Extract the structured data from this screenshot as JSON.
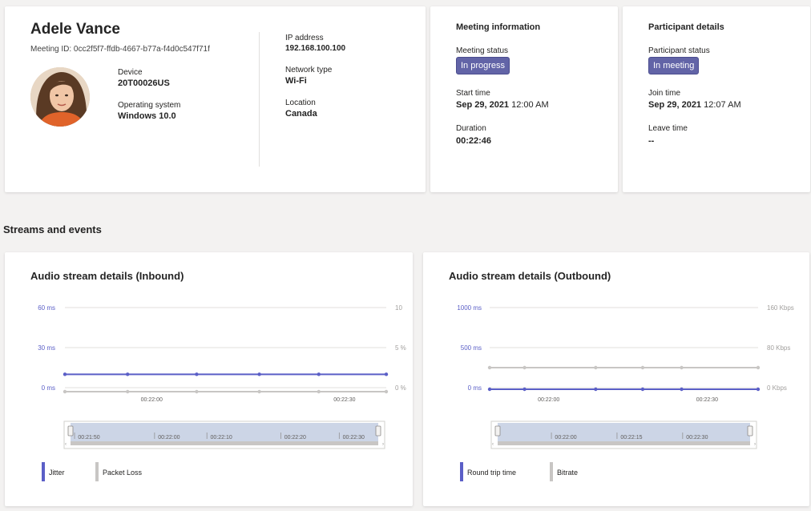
{
  "participant": {
    "name": "Adele Vance",
    "meeting_id_label": "Meeting ID:",
    "meeting_id": "0cc2f5f7-ffdb-4667-b77a-f4d0c547f71f",
    "device_label": "Device",
    "device": "20T00026US",
    "os_label": "Operating system",
    "os": "Windows 10.0",
    "ip_label": "IP address",
    "ip": "192.168.100.100",
    "network_label": "Network type",
    "network": "Wi-Fi",
    "location_label": "Location",
    "location": "Canada"
  },
  "meeting_info": {
    "title": "Meeting information",
    "status_label": "Meeting status",
    "status": "In progress",
    "start_label": "Start time",
    "start_date": "Sep 29, 2021",
    "start_time": "12:00 AM",
    "duration_label": "Duration",
    "duration": "00:22:46"
  },
  "participant_details": {
    "title": "Participant details",
    "status_label": "Participant status",
    "status": "In meeting",
    "join_label": "Join time",
    "join_date": "Sep 29, 2021",
    "join_time": "12:07 AM",
    "leave_label": "Leave time",
    "leave": "--"
  },
  "section_title": "Streams and events",
  "colors": {
    "accent": "#6264a7",
    "series_primary": "#5b5fc7",
    "series_secondary": "#c8c6c4",
    "range_fill": "#ccd5e6"
  },
  "chart_data": [
    {
      "type": "line",
      "title": "Audio stream details (Inbound)",
      "y_ticks_left": [
        "60 ms",
        "30 ms",
        "0 ms"
      ],
      "y_ticks_right": [
        "10",
        "5 %",
        "0 %"
      ],
      "ylim_left": [
        0,
        60
      ],
      "ylim_right": [
        0,
        10
      ],
      "x_ticks": [
        "00:22:00",
        "00:22:30"
      ],
      "range_ticks": [
        "00:21:50",
        "00:22:00",
        "00:22:10",
        "00:22:20",
        "00:22:30"
      ],
      "series": [
        {
          "name": "Jitter",
          "axis": "left",
          "values": [
            10,
            10,
            10,
            10,
            10,
            10
          ]
        },
        {
          "name": "Packet Loss",
          "axis": "right",
          "values": [
            0,
            0,
            0,
            0,
            0,
            0
          ]
        }
      ]
    },
    {
      "type": "line",
      "title": "Audio stream details (Outbound)",
      "y_ticks_left": [
        "1000 ms",
        "500 ms",
        "0 ms"
      ],
      "y_ticks_right": [
        "160 Kbps",
        "80 Kbps",
        "0 Kbps"
      ],
      "ylim_left": [
        0,
        1000
      ],
      "ylim_right": [
        0,
        160
      ],
      "x_ticks": [
        "00:22:00",
        "00:22:30"
      ],
      "range_ticks": [
        "00:22:00",
        "00:22:15",
        "00:22:30"
      ],
      "series": [
        {
          "name": "Round trip time",
          "axis": "left",
          "values": [
            0,
            0,
            0,
            0,
            0,
            0
          ]
        },
        {
          "name": "Bitrate",
          "axis": "right",
          "values": [
            40,
            40,
            40,
            40,
            40,
            40
          ]
        }
      ]
    }
  ]
}
